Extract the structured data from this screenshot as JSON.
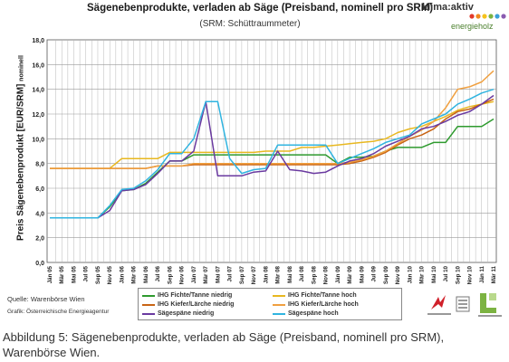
{
  "chart_data": {
    "type": "line",
    "title": "Sägenebenprodukte, verladen ab Säge (Preisband, nominell pro SRM)",
    "subtitle": "(SRM: Schüttraummeter)",
    "ylabel": "Preis Sägenebenprodukt [EUR/SRM]",
    "ylabel_suffix": "nominell",
    "ylim": [
      0,
      18
    ],
    "yticks": [
      "0,0",
      "2,0",
      "4,0",
      "6,0",
      "8,0",
      "10,0",
      "12,0",
      "14,0",
      "16,0",
      "18,0"
    ],
    "grid": true,
    "legend_position": "bottom",
    "x": [
      "Jän 05",
      "Mär 05",
      "Mai 05",
      "Jul 05",
      "Sep 05",
      "Nov 05",
      "Jän 06",
      "Mär 06",
      "Mai 06",
      "Jul 06",
      "Sep 06",
      "Nov 06",
      "Jän 07",
      "Mär 07",
      "Mai 07",
      "Jul 07",
      "Sep 07",
      "Nov 07",
      "Jän 08",
      "Mär 08",
      "Mai 08",
      "Jul 08",
      "Sep 08",
      "Nov 08",
      "Jän 09",
      "Mär 09",
      "Mai 09",
      "Jul 09",
      "Sep 09",
      "Nov 09",
      "Jän 10",
      "Mär 10",
      "Mai 10",
      "Jul 10",
      "Sep 10",
      "Nov 10",
      "Jän 11",
      "Mär 11"
    ],
    "series": [
      {
        "name": "IHG Fichte/Tanne niedrig",
        "color": "#2e9a2e",
        "values": [
          3.6,
          3.6,
          3.6,
          3.6,
          3.6,
          4.5,
          5.8,
          5.9,
          6.4,
          7.3,
          8.2,
          8.2,
          8.7,
          8.7,
          8.7,
          8.7,
          8.7,
          8.7,
          8.7,
          8.7,
          8.7,
          8.7,
          8.7,
          8.7,
          8.0,
          8.5,
          8.5,
          8.6,
          9.0,
          9.3,
          9.3,
          9.3,
          9.7,
          9.7,
          11.0,
          11.0,
          11.0,
          11.6
        ]
      },
      {
        "name": "IHG Fichte/Tanne hoch",
        "color": "#e8b820",
        "values": [
          7.6,
          7.6,
          7.6,
          7.6,
          7.6,
          7.6,
          8.4,
          8.4,
          8.4,
          8.4,
          8.9,
          8.9,
          8.9,
          8.9,
          8.9,
          8.9,
          8.9,
          8.9,
          9.0,
          9.0,
          9.0,
          9.3,
          9.3,
          9.4,
          9.5,
          9.6,
          9.7,
          9.8,
          10.0,
          10.5,
          10.8,
          11.0,
          11.4,
          11.8,
          12.3,
          12.6,
          12.8,
          13.0
        ]
      },
      {
        "name": "IHG Kiefer/Lärche niedrig",
        "color": "#c86414",
        "values": [
          7.6,
          7.6,
          7.6,
          7.6,
          7.6,
          7.6,
          7.6,
          7.6,
          7.6,
          7.8,
          7.8,
          7.8,
          7.9,
          7.9,
          7.9,
          7.9,
          7.9,
          7.9,
          7.9,
          7.9,
          7.9,
          7.9,
          7.9,
          7.9,
          7.9,
          8.0,
          8.2,
          8.5,
          8.9,
          9.5,
          10.0,
          10.3,
          10.8,
          11.6,
          12.2,
          12.4,
          12.8,
          13.2
        ]
      },
      {
        "name": "IHG Kiefer/Lärche hoch",
        "color": "#f0a040",
        "values": [
          7.6,
          7.6,
          7.6,
          7.6,
          7.6,
          7.6,
          7.6,
          7.6,
          7.6,
          7.8,
          7.8,
          7.8,
          8.0,
          8.0,
          8.0,
          8.0,
          8.0,
          8.0,
          8.0,
          8.0,
          8.0,
          8.0,
          8.0,
          8.0,
          8.0,
          8.1,
          8.3,
          8.6,
          9.0,
          9.6,
          10.2,
          10.7,
          11.4,
          12.5,
          14.0,
          14.2,
          14.6,
          15.5
        ]
      },
      {
        "name": "Sägespäne niedrig",
        "color": "#6a3aa0",
        "values": [
          3.6,
          3.6,
          3.6,
          3.6,
          3.6,
          4.2,
          5.8,
          5.9,
          6.3,
          7.2,
          8.2,
          8.2,
          9.0,
          13.0,
          7.0,
          7.0,
          7.0,
          7.3,
          7.4,
          9.0,
          7.5,
          7.4,
          7.2,
          7.3,
          7.8,
          8.2,
          8.4,
          8.8,
          9.4,
          9.8,
          10.2,
          10.8,
          11.0,
          11.4,
          11.9,
          12.2,
          12.8,
          13.5
        ]
      },
      {
        "name": "Sägespäne hoch",
        "color": "#30b4e0",
        "values": [
          3.6,
          3.6,
          3.6,
          3.6,
          3.6,
          4.6,
          5.9,
          6.0,
          6.6,
          7.5,
          8.8,
          8.8,
          10.0,
          13.0,
          13.0,
          8.4,
          7.2,
          7.5,
          7.6,
          9.5,
          9.5,
          9.5,
          9.5,
          9.5,
          8.0,
          8.4,
          8.8,
          9.2,
          9.7,
          10.0,
          10.3,
          11.2,
          11.6,
          12.0,
          12.8,
          13.2,
          13.7,
          14.0
        ]
      }
    ]
  },
  "logo": {
    "name": "klima:aktiv",
    "sub": "energieholz"
  },
  "source": "Quelle: Warenbörse Wien",
  "graphic": "Grafik: Österreichische Energieagentur",
  "caption": "Abbildung 5: Sägenebenprodukte, verladen ab Säge (Preisband, nominell pro SRM), Warenbörse Wien."
}
